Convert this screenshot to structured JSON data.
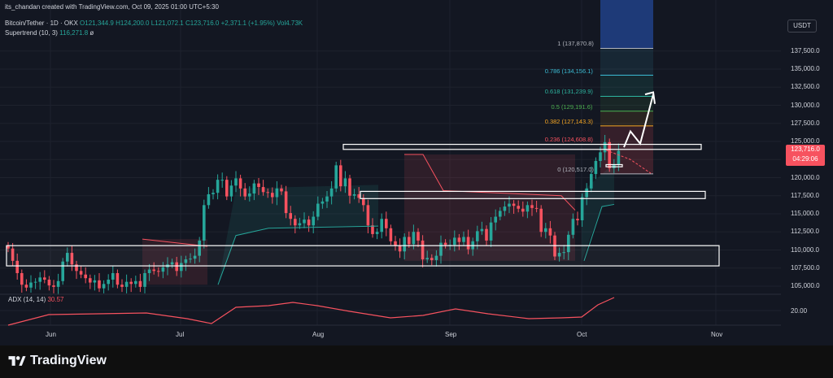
{
  "header": {
    "author_line": "its_chandan created with TradingView.com, Oct 09, 2025 01:00 UTC+5:30",
    "symbol": "Bitcoin/Tether · 1D · OKX",
    "open": "O121,344.9",
    "high": "H124,200.0",
    "low": "L121,072.1",
    "close": "C123,716.0",
    "change": "+2,371.1 (+1.95%)",
    "volume": "Vol4.73K",
    "indicator": "Supertrend (10, 3)",
    "indicator_value": "116,271.8",
    "indicator_suffix": "ø"
  },
  "currency": "USDT",
  "last_price": {
    "value": "123,716.0",
    "countdown": "04:29:06"
  },
  "adx": {
    "label": "ADX (14, 14)",
    "value": "30.57",
    "tick": "20.00"
  },
  "footer": {
    "brand": "TradingView"
  },
  "colors": {
    "bg": "#131722",
    "up": "#26a69a",
    "down": "#f7525f",
    "fib_orange": "#f5a623",
    "fib_teal": "#2db5a0",
    "fib_cyan": "#3bbcd4"
  },
  "fib_levels": [
    {
      "ratio": "1",
      "price": "137,870.8",
      "label": "1 (137,870.8)",
      "color": "#b2b5be"
    },
    {
      "ratio": "0.786",
      "price": "134,156.1",
      "label": "0.786 (134,156.1)",
      "color": "#3bbcd4"
    },
    {
      "ratio": "0.618",
      "price": "131,239.9",
      "label": "0.618 (131,239.9)",
      "color": "#2db5a0"
    },
    {
      "ratio": "0.5",
      "price": "129,191.6",
      "label": "0.5 (129,191.6)",
      "color": "#4caf50"
    },
    {
      "ratio": "0.382",
      "price": "127,143.3",
      "label": "0.382 (127,143.3)",
      "color": "#f5a623"
    },
    {
      "ratio": "0.236",
      "price": "124,608.8",
      "label": "0.236 (124,608.8)",
      "color": "#f7525f"
    },
    {
      "ratio": "0",
      "price": "120,517.0",
      "label": "0 (120,517.0)",
      "color": "#b2b5be"
    }
  ],
  "chart_data": {
    "type": "candlestick",
    "title": "Bitcoin/Tether · 1D · OKX",
    "ylim": [
      103000,
      141000
    ],
    "yticks": [
      "137,500.0",
      "135,000.0",
      "132,500.0",
      "130,000.0",
      "127,500.0",
      "125,000.0",
      "122,500.0",
      "120,000.0",
      "117,500.0",
      "115,000.0",
      "112,500.0",
      "110,000.0",
      "107,500.0",
      "105,000.0"
    ],
    "xticks": [
      "Jun",
      "Jul",
      "Aug",
      "Sep",
      "Oct",
      "Nov"
    ],
    "closes": [
      110200,
      108500,
      106800,
      105200,
      104800,
      105500,
      105600,
      106200,
      105900,
      105100,
      104900,
      105700,
      108400,
      109600,
      108000,
      107100,
      106600,
      106100,
      105500,
      105800,
      104700,
      105300,
      105900,
      106800,
      105200,
      104900,
      105600,
      105300,
      105700,
      104900,
      106800,
      107300,
      107100,
      107000,
      107600,
      108000,
      108300,
      107100,
      108200,
      108700,
      108800,
      109200,
      111300,
      116200,
      117700,
      117900,
      119700,
      119700,
      117400,
      118900,
      119900,
      118500,
      117400,
      117800,
      119200,
      118700,
      118000,
      117900,
      117300,
      118500,
      118100,
      115100,
      114300,
      113400,
      113700,
      114200,
      113400,
      114600,
      116400,
      116700,
      117400,
      118500,
      121700,
      118800,
      119900,
      117500,
      117700,
      117200,
      116200,
      113400,
      112200,
      112500,
      114300,
      113000,
      111200,
      110600,
      109800,
      111800,
      110800,
      112500,
      111300,
      108700,
      108900,
      108600,
      109200,
      111000,
      110700,
      110700,
      111700,
      111100,
      111800,
      110100,
      111200,
      112600,
      112900,
      111300,
      113800,
      114600,
      115400,
      116000,
      116400,
      116100,
      115700,
      115300,
      116200,
      115800,
      115700,
      112500,
      113000,
      112000,
      109100,
      109600,
      109700,
      112100,
      114300,
      114100,
      117300,
      118500,
      120500,
      122300,
      123500,
      124900,
      121300,
      121800,
      123716
    ]
  }
}
